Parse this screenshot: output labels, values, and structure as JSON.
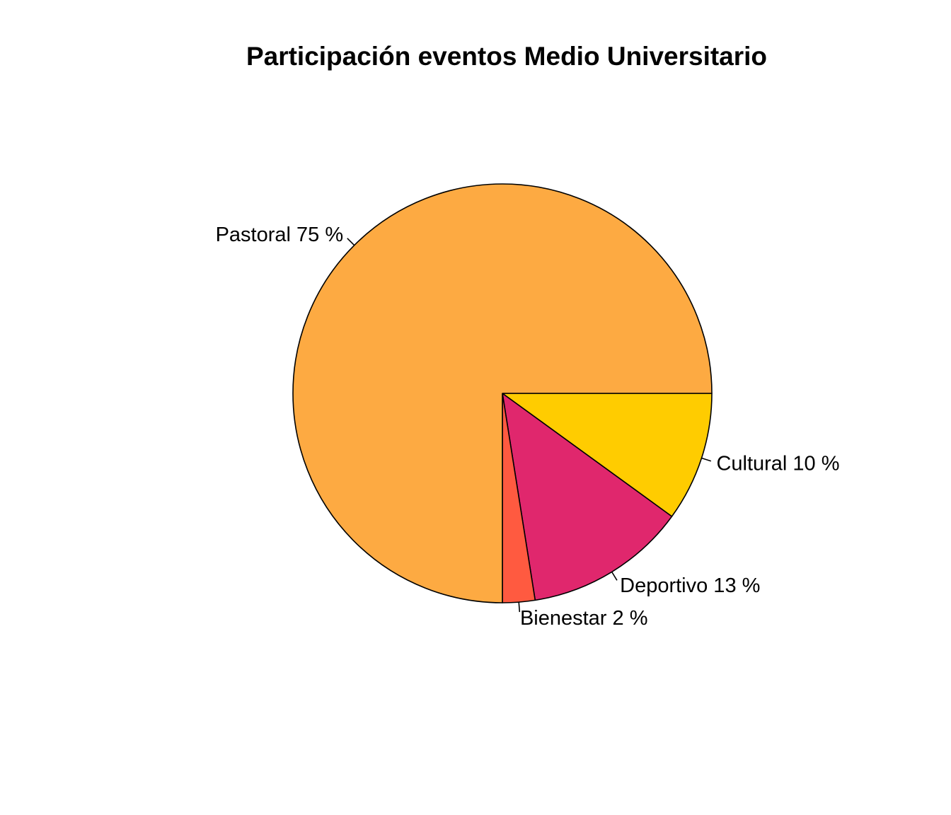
{
  "chart_data": {
    "type": "pie",
    "title": "Participación eventos Medio Universitario",
    "slices": [
      {
        "name": "Cultural",
        "value": 10,
        "label": "Cultural 10 %",
        "color": "#FFCC00"
      },
      {
        "name": "Deportivo",
        "value": 12.5,
        "label": "Deportivo 13 %",
        "color": "#E0276D"
      },
      {
        "name": "Bienestar",
        "value": 2.5,
        "label": "Bienestar 2 %",
        "color": "#FF5A40"
      },
      {
        "name": "Pastoral",
        "value": 75,
        "label": "Pastoral 75 %",
        "color": "#FDAA42"
      }
    ],
    "start_angle_deg": 0,
    "direction": "clockwise",
    "legend": "none"
  }
}
